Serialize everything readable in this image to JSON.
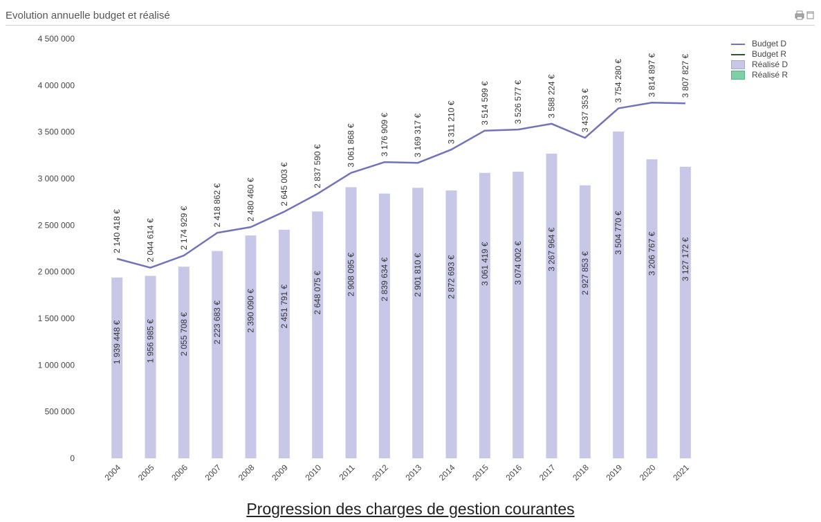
{
  "header": {
    "title": "Evolution annuelle budget et réalisé"
  },
  "caption": "Progression des charges de gestion courantes",
  "icons": [
    "printer-icon",
    "restore-icon"
  ],
  "colors": {
    "bar": "#c7c8e8",
    "line": "#7173b8",
    "budget_r": "#2c5530",
    "realise_r": "#7fcfa7",
    "axis_text": "#444444"
  },
  "legend": {
    "items": [
      {
        "label": "Budget D"
      },
      {
        "label": "Budget R"
      },
      {
        "label": "Réalisé D"
      },
      {
        "label": "Réalisé R"
      }
    ]
  },
  "chart_data": {
    "type": "bar",
    "title": "Evolution annuelle budget et réalisé",
    "categories": [
      "2004",
      "2005",
      "2006",
      "2007",
      "2008",
      "2009",
      "2010",
      "2011",
      "2012",
      "2013",
      "2014",
      "2015",
      "2016",
      "2017",
      "2018",
      "2019",
      "2020",
      "2021"
    ],
    "ylim": [
      0,
      4500000
    ],
    "yticks": [
      0,
      500000,
      1000000,
      1500000,
      2000000,
      2500000,
      3000000,
      3500000,
      4000000,
      4500000
    ],
    "ytick_labels": [
      "0",
      "500 000",
      "1 000 000",
      "1 500 000",
      "2 000 000",
      "2 500 000",
      "3 000 000",
      "3 500 000",
      "4 000 000",
      "4 500 000"
    ],
    "legend_position": "top-right",
    "grid": false,
    "series": [
      {
        "name": "Réalisé D",
        "kind": "bar",
        "values": [
          1939448,
          1956985,
          2055708,
          2223683,
          2390090,
          2451791,
          2648075,
          2908095,
          2839634,
          2901810,
          2872693,
          3061419,
          3074002,
          3267964,
          2927853,
          3504770,
          3206767,
          3127172
        ],
        "labels": [
          "1 939 448 €",
          "1 956 985 €",
          "2 055 708 €",
          "2 223 683 €",
          "2 390 090 €",
          "2 451 791 €",
          "2 648 075 €",
          "2 908 095 €",
          "2 839 634 €",
          "2 901 810 €",
          "2 872 693 €",
          "3 061 419 €",
          "3 074 002 €",
          "3 267 964 €",
          "2 927 853 €",
          "3 504 770 €",
          "3 206 767 €",
          "3 127 172 €"
        ]
      },
      {
        "name": "Budget D",
        "kind": "line",
        "values": [
          2140418,
          2044614,
          2174929,
          2418862,
          2480460,
          2645003,
          2837590,
          3061868,
          3176909,
          3169317,
          3311210,
          3514599,
          3526577,
          3588224,
          3437353,
          3754280,
          3814897,
          3807827
        ],
        "labels": [
          "2 140 418 €",
          "2 044 614 €",
          "2 174 929 €",
          "2 418 862 €",
          "2 480 460 €",
          "2 645 003 €",
          "2 837 590 €",
          "3 061 868 €",
          "3 176 909 €",
          "3 169 317 €",
          "3 311 210 €",
          "3 514 599 €",
          "3 526 577 €",
          "3 588 224 €",
          "3 437 353 €",
          "3 754 280 €",
          "3 814 897 €",
          "3 807 827 €"
        ]
      }
    ]
  }
}
